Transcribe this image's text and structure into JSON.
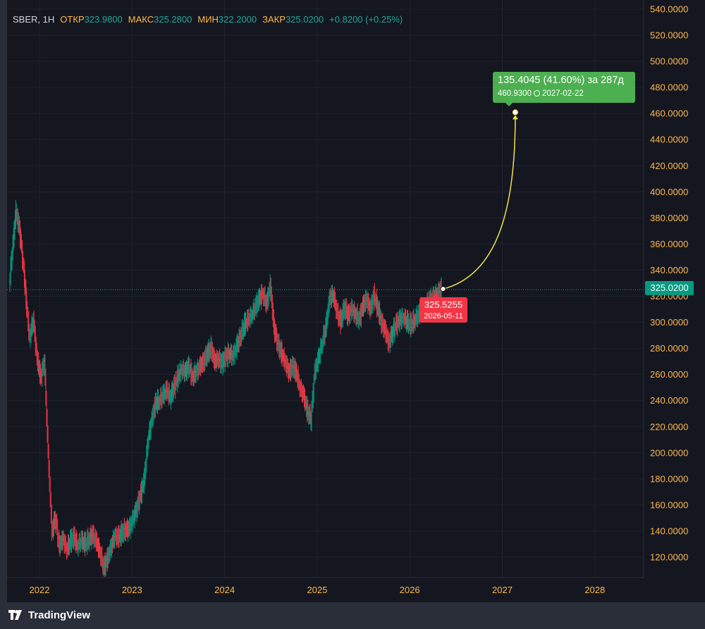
{
  "header": {
    "symbol": "SBER",
    "interval": "1H",
    "open_label": "ОТКР",
    "open_value": "323.9800",
    "high_label": "МАКС",
    "high_value": "325.2800",
    "low_label": "МИН",
    "low_value": "322.2000",
    "close_label": "ЗАКР",
    "close_value": "325.0200",
    "change": "+0.8200 (+0.25%)"
  },
  "last_price_tag": "325.0200",
  "projection": {
    "change_text": "135.4045 (41.60%) за 287д",
    "target_price": "460.9300",
    "target_date": "2027-02-22",
    "start_price": "325.5255",
    "start_date": "2026-05-11"
  },
  "colors": {
    "up": "#089981",
    "down": "#f23645",
    "axis_text": "#ffb74d",
    "projection_line": "#f5e04a",
    "target_badge": "#4caf50",
    "start_badge": "#f23645",
    "price_tag": "#089981"
  },
  "branding": {
    "name": "TradingView"
  },
  "chart_data": {
    "type": "ohlc",
    "title": "",
    "xlabel": "",
    "ylabel": "",
    "x_ticks": [
      "2022",
      "2023",
      "2024",
      "2025",
      "2026",
      "2027",
      "2028"
    ],
    "y_ticks": [
      "340.0000",
      "320.0000",
      "300.0000",
      "280.0000",
      "260.0000",
      "240.0000",
      "220.0000",
      "200.0000",
      "180.0000",
      "160.0000",
      "140.0000",
      "120.0000"
    ],
    "y_ticks_upper": [
      "540.0000",
      "520.0000",
      "500.0000",
      "480.0000",
      "460.0000",
      "440.0000",
      "420.0000",
      "400.0000",
      "380.0000",
      "360.0000"
    ],
    "ylim": [
      110,
      545
    ],
    "xlim": [
      2021.68,
      2028.65
    ],
    "grid": true,
    "last_price": 325.02,
    "projection_start": {
      "x": 2026.36,
      "y": 325.5255
    },
    "projection_end": {
      "x": 2027.14,
      "y": 460.93
    },
    "series": [
      {
        "x": 2021.68,
        "y": 330
      },
      {
        "x": 2021.72,
        "y": 360
      },
      {
        "x": 2021.75,
        "y": 385
      },
      {
        "x": 2021.79,
        "y": 372
      },
      {
        "x": 2021.83,
        "y": 345
      },
      {
        "x": 2021.86,
        "y": 318
      },
      {
        "x": 2021.9,
        "y": 288
      },
      {
        "x": 2021.94,
        "y": 302
      },
      {
        "x": 2021.98,
        "y": 272
      },
      {
        "x": 2022.02,
        "y": 258
      },
      {
        "x": 2022.06,
        "y": 270
      },
      {
        "x": 2022.1,
        "y": 200
      },
      {
        "x": 2022.14,
        "y": 140
      },
      {
        "x": 2022.18,
        "y": 150
      },
      {
        "x": 2022.22,
        "y": 128
      },
      {
        "x": 2022.26,
        "y": 134
      },
      {
        "x": 2022.3,
        "y": 126
      },
      {
        "x": 2022.34,
        "y": 132
      },
      {
        "x": 2022.38,
        "y": 135
      },
      {
        "x": 2022.42,
        "y": 129
      },
      {
        "x": 2022.46,
        "y": 133
      },
      {
        "x": 2022.5,
        "y": 130
      },
      {
        "x": 2022.54,
        "y": 134
      },
      {
        "x": 2022.58,
        "y": 137
      },
      {
        "x": 2022.62,
        "y": 132
      },
      {
        "x": 2022.66,
        "y": 124
      },
      {
        "x": 2022.7,
        "y": 112
      },
      {
        "x": 2022.74,
        "y": 118
      },
      {
        "x": 2022.78,
        "y": 128
      },
      {
        "x": 2022.82,
        "y": 136
      },
      {
        "x": 2022.86,
        "y": 135
      },
      {
        "x": 2022.9,
        "y": 139
      },
      {
        "x": 2022.94,
        "y": 141
      },
      {
        "x": 2022.98,
        "y": 142
      },
      {
        "x": 2023.02,
        "y": 150
      },
      {
        "x": 2023.06,
        "y": 158
      },
      {
        "x": 2023.1,
        "y": 168
      },
      {
        "x": 2023.14,
        "y": 180
      },
      {
        "x": 2023.18,
        "y": 210
      },
      {
        "x": 2023.22,
        "y": 225
      },
      {
        "x": 2023.26,
        "y": 238
      },
      {
        "x": 2023.3,
        "y": 240
      },
      {
        "x": 2023.34,
        "y": 244
      },
      {
        "x": 2023.38,
        "y": 248
      },
      {
        "x": 2023.42,
        "y": 243
      },
      {
        "x": 2023.46,
        "y": 250
      },
      {
        "x": 2023.5,
        "y": 258
      },
      {
        "x": 2023.54,
        "y": 264
      },
      {
        "x": 2023.58,
        "y": 262
      },
      {
        "x": 2023.62,
        "y": 266
      },
      {
        "x": 2023.66,
        "y": 258
      },
      {
        "x": 2023.7,
        "y": 262
      },
      {
        "x": 2023.74,
        "y": 266
      },
      {
        "x": 2023.78,
        "y": 270
      },
      {
        "x": 2023.82,
        "y": 276
      },
      {
        "x": 2023.86,
        "y": 280
      },
      {
        "x": 2023.9,
        "y": 270
      },
      {
        "x": 2023.94,
        "y": 272
      },
      {
        "x": 2023.98,
        "y": 268
      },
      {
        "x": 2024.02,
        "y": 274
      },
      {
        "x": 2024.06,
        "y": 276
      },
      {
        "x": 2024.1,
        "y": 274
      },
      {
        "x": 2024.14,
        "y": 282
      },
      {
        "x": 2024.18,
        "y": 290
      },
      {
        "x": 2024.22,
        "y": 298
      },
      {
        "x": 2024.26,
        "y": 302
      },
      {
        "x": 2024.3,
        "y": 306
      },
      {
        "x": 2024.34,
        "y": 312
      },
      {
        "x": 2024.38,
        "y": 318
      },
      {
        "x": 2024.42,
        "y": 322
      },
      {
        "x": 2024.46,
        "y": 314
      },
      {
        "x": 2024.5,
        "y": 328
      },
      {
        "x": 2024.54,
        "y": 296
      },
      {
        "x": 2024.58,
        "y": 284
      },
      {
        "x": 2024.62,
        "y": 276
      },
      {
        "x": 2024.66,
        "y": 270
      },
      {
        "x": 2024.7,
        "y": 262
      },
      {
        "x": 2024.74,
        "y": 266
      },
      {
        "x": 2024.78,
        "y": 262
      },
      {
        "x": 2024.82,
        "y": 250
      },
      {
        "x": 2024.86,
        "y": 244
      },
      {
        "x": 2024.9,
        "y": 232
      },
      {
        "x": 2024.94,
        "y": 226
      },
      {
        "x": 2024.98,
        "y": 262
      },
      {
        "x": 2025.02,
        "y": 272
      },
      {
        "x": 2025.06,
        "y": 284
      },
      {
        "x": 2025.1,
        "y": 296
      },
      {
        "x": 2025.14,
        "y": 318
      },
      {
        "x": 2025.18,
        "y": 322
      },
      {
        "x": 2025.22,
        "y": 308
      },
      {
        "x": 2025.26,
        "y": 300
      },
      {
        "x": 2025.3,
        "y": 312
      },
      {
        "x": 2025.34,
        "y": 305
      },
      {
        "x": 2025.38,
        "y": 310
      },
      {
        "x": 2025.42,
        "y": 306
      },
      {
        "x": 2025.46,
        "y": 302
      },
      {
        "x": 2025.5,
        "y": 312
      },
      {
        "x": 2025.54,
        "y": 318
      },
      {
        "x": 2025.58,
        "y": 310
      },
      {
        "x": 2025.62,
        "y": 320
      },
      {
        "x": 2025.66,
        "y": 312
      },
      {
        "x": 2025.7,
        "y": 300
      },
      {
        "x": 2025.74,
        "y": 294
      },
      {
        "x": 2025.78,
        "y": 284
      },
      {
        "x": 2025.82,
        "y": 292
      },
      {
        "x": 2025.86,
        "y": 298
      },
      {
        "x": 2025.9,
        "y": 302
      },
      {
        "x": 2025.94,
        "y": 304
      },
      {
        "x": 2025.98,
        "y": 300
      },
      {
        "x": 2026.02,
        "y": 298
      },
      {
        "x": 2026.06,
        "y": 302
      },
      {
        "x": 2026.1,
        "y": 306
      },
      {
        "x": 2026.14,
        "y": 308
      },
      {
        "x": 2026.18,
        "y": 312
      },
      {
        "x": 2026.22,
        "y": 316
      },
      {
        "x": 2026.26,
        "y": 318
      },
      {
        "x": 2026.3,
        "y": 322
      },
      {
        "x": 2026.34,
        "y": 325
      }
    ]
  }
}
